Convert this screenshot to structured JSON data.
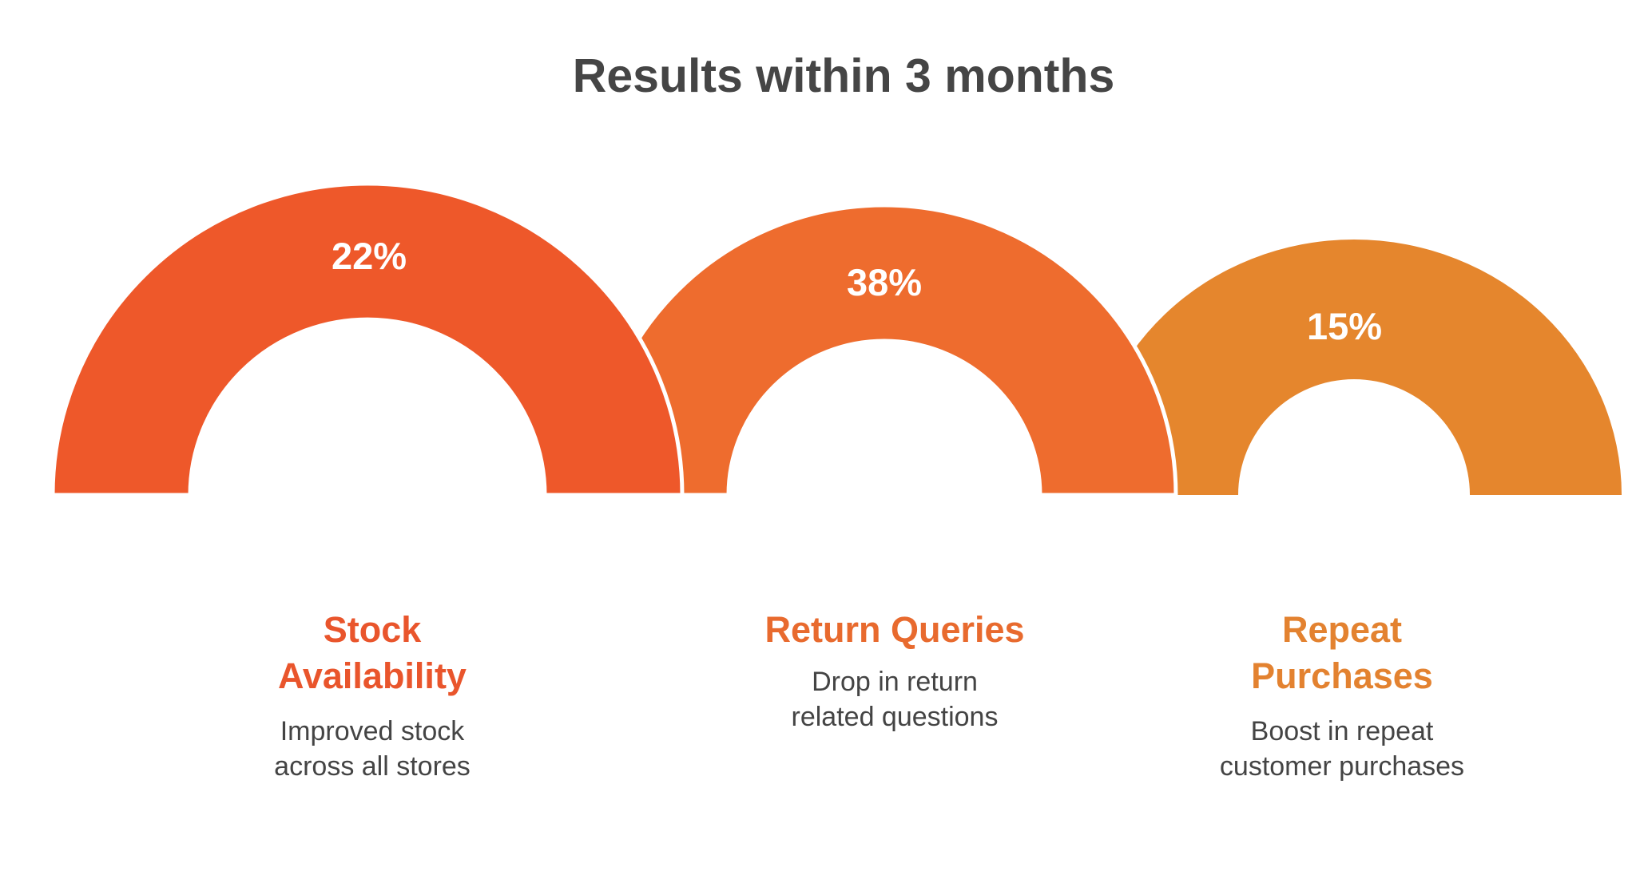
{
  "title": "Results within 3 months",
  "metrics": [
    {
      "value": "22%",
      "percent": 22,
      "title": "Stock\nAvailability",
      "description": "Improved stock\nacross all stores",
      "color": "#ee582a"
    },
    {
      "value": "38%",
      "percent": 38,
      "title": "Return Queries",
      "description": "Drop in return\nrelated questions",
      "color": "#ee6c2e"
    },
    {
      "value": "15%",
      "percent": 15,
      "title": "Repeat\nPurchases",
      "description": "Boost in repeat\ncustomer purchases",
      "color": "#e5862d"
    }
  ]
}
